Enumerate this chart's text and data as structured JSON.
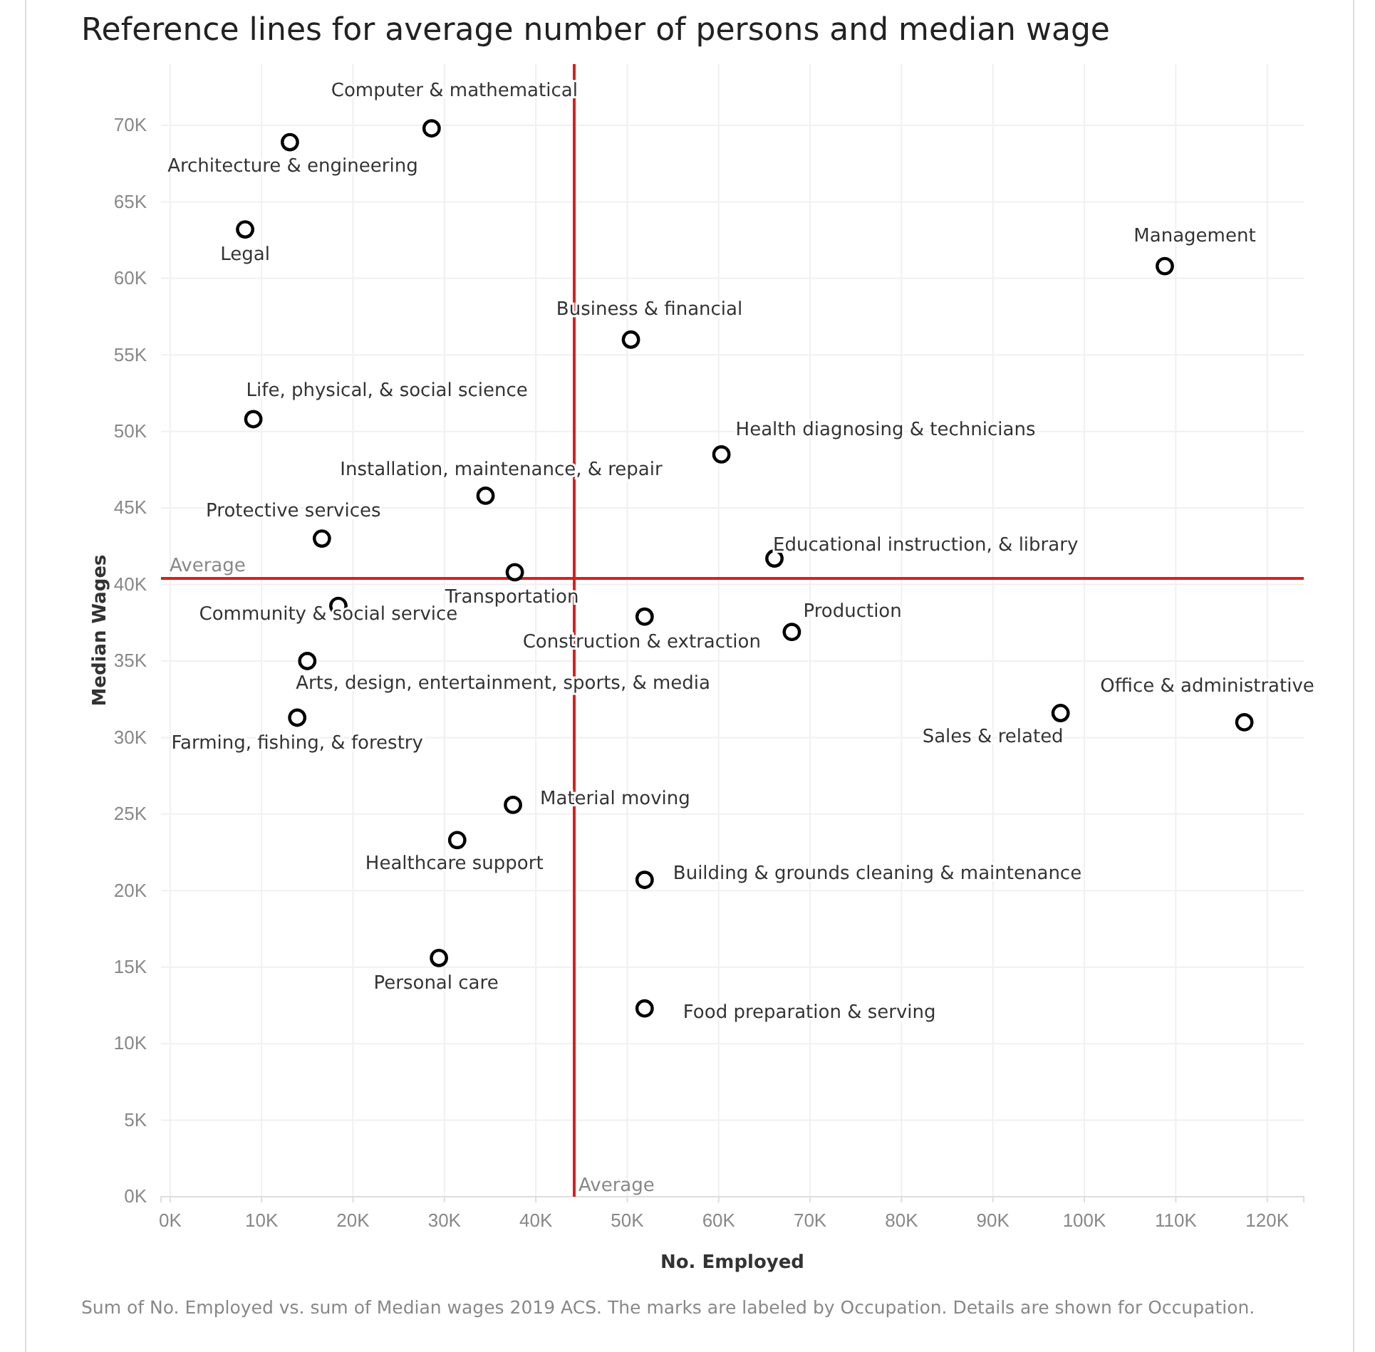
{
  "chart_data": {
    "type": "scatter",
    "title": "Reference lines for average number of persons and median wage",
    "xlabel": "No. Employed",
    "ylabel": "Median Wages",
    "x": [
      28.6,
      13.1,
      8.2,
      50.4,
      9.1,
      60.3,
      34.5,
      16.6,
      37.7,
      18.4,
      51.9,
      15.0,
      13.9,
      37.5,
      31.4,
      51.9,
      29.4,
      51.9,
      108.8,
      66.1,
      68.0,
      97.4,
      117.5
    ],
    "series": [
      {
        "color": "#000000",
        "values": [
          69.8,
          68.9,
          63.2,
          56.0,
          50.8,
          48.5,
          45.8,
          43.0,
          40.8,
          38.6,
          37.9,
          35.0,
          31.3,
          25.6,
          23.3,
          20.7,
          15.6,
          12.3,
          60.8,
          41.7,
          36.9,
          31.6,
          31.0
        ]
      }
    ],
    "annotations": [
      {
        "text": "Computer & mathematical",
        "x": 28.6,
        "y": 69.8
      },
      {
        "text": "Architecture & engineering",
        "x": 13.1,
        "y": 68.9
      },
      {
        "text": "Legal",
        "x": 8.2,
        "y": 63.2
      },
      {
        "text": "Business & financial",
        "x": 50.4,
        "y": 56.0
      },
      {
        "text": "Life, physical, & social science",
        "x": 9.1,
        "y": 50.8
      },
      {
        "text": "Health diagnosing & technicians",
        "x": 60.3,
        "y": 48.5
      },
      {
        "text": "Installation, maintenance, & repair",
        "x": 34.5,
        "y": 45.8
      },
      {
        "text": "Protective services",
        "x": 16.6,
        "y": 43.0
      },
      {
        "text": "Transportation",
        "x": 37.7,
        "y": 40.8
      },
      {
        "text": "Community & social service",
        "x": 18.4,
        "y": 38.6
      },
      {
        "text": "Construction & extraction",
        "x": 51.9,
        "y": 37.9
      },
      {
        "text": "Arts, design, entertainment, sports, & media",
        "x": 15.0,
        "y": 35.0
      },
      {
        "text": "Farming, fishing, & forestry",
        "x": 13.9,
        "y": 31.3
      },
      {
        "text": "Material moving",
        "x": 37.5,
        "y": 25.6
      },
      {
        "text": "Healthcare support",
        "x": 31.4,
        "y": 23.3
      },
      {
        "text": "Building & grounds cleaning & maintenance",
        "x": 51.9,
        "y": 20.7
      },
      {
        "text": "Personal care",
        "x": 29.4,
        "y": 15.6
      },
      {
        "text": "Food preparation & serving",
        "x": 51.9,
        "y": 12.3
      },
      {
        "text": "Management",
        "x": 108.8,
        "y": 60.8
      },
      {
        "text": "Educational instruction, & library",
        "x": 66.1,
        "y": 41.7
      },
      {
        "text": "Production",
        "x": 68.0,
        "y": 36.9
      },
      {
        "text": "Sales & related",
        "x": 97.4,
        "y": 31.6
      },
      {
        "text": "Office & administrative",
        "x": 117.5,
        "y": 31.0
      },
      "Sum of No. Employed vs. sum of Median wages 2019 ACS.  The marks are labeled by Occupation.  Details are shown for Occupation."
    ],
    "ref_lines": [
      {
        "axis": "y",
        "value": 40.4,
        "label": "Average",
        "color": "#d62020"
      },
      {
        "axis": "x",
        "value": 44.2,
        "label": "Average",
        "color": "#d62020"
      }
    ],
    "xlim": [
      -1,
      124
    ],
    "ylim": [
      0,
      74
    ],
    "xticks": [
      {
        "value": 0,
        "label": "0K"
      },
      {
        "value": 10,
        "label": "10K"
      },
      {
        "value": 20,
        "label": "20K"
      },
      {
        "value": 30,
        "label": "30K"
      },
      {
        "value": 40,
        "label": "40K"
      },
      {
        "value": 50,
        "label": "50K"
      },
      {
        "value": 60,
        "label": "60K"
      },
      {
        "value": 70,
        "label": "70K"
      },
      {
        "value": 80,
        "label": "80K"
      },
      {
        "value": 90,
        "label": "90K"
      },
      {
        "value": 100,
        "label": "100K"
      },
      {
        "value": 110,
        "label": "110K"
      },
      {
        "value": 120,
        "label": "120K"
      }
    ],
    "yticks": [
      {
        "value": 0,
        "label": "0K"
      },
      {
        "value": 5,
        "label": "5K"
      },
      {
        "value": 10,
        "label": "10K"
      },
      {
        "value": 15,
        "label": "15K"
      },
      {
        "value": 20,
        "label": "20K"
      },
      {
        "value": 25,
        "label": "25K"
      },
      {
        "value": 30,
        "label": "30K"
      },
      {
        "value": 35,
        "label": "35K"
      },
      {
        "value": 40,
        "label": "40K"
      },
      {
        "value": 45,
        "label": "45K"
      },
      {
        "value": 50,
        "label": "50K"
      },
      {
        "value": 55,
        "label": "55K"
      },
      {
        "value": 60,
        "label": "60K"
      },
      {
        "value": 65,
        "label": "65K"
      },
      {
        "value": 70,
        "label": "70K"
      }
    ],
    "grid": true,
    "marker": "circle"
  }
}
